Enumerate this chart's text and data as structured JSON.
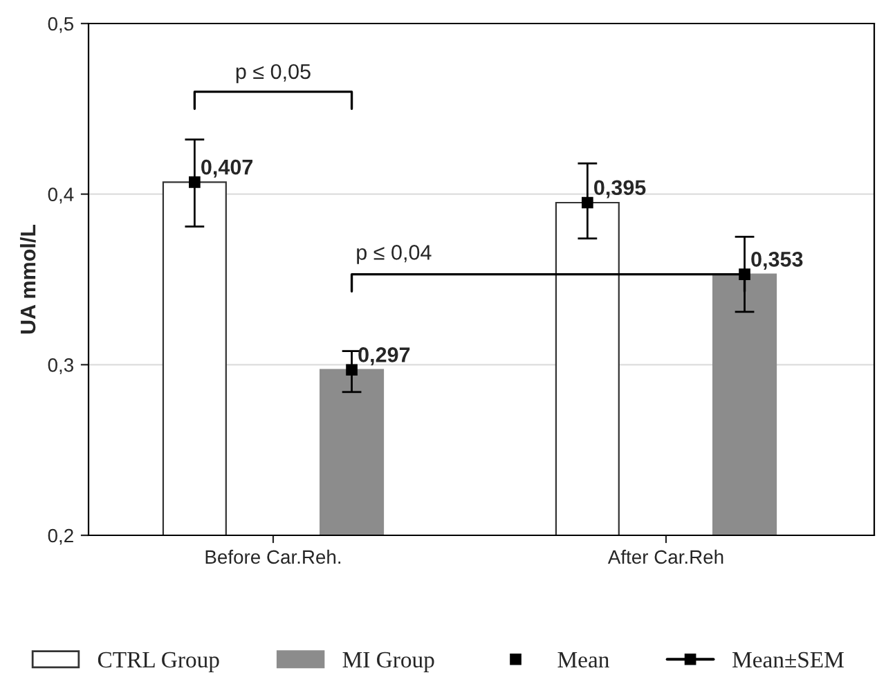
{
  "chart_data": {
    "type": "bar",
    "ylabel": "UA mmol/L",
    "categories": [
      "Before Car.Reh.",
      "After Car.Reh"
    ],
    "series": [
      {
        "name": "CTRL Group",
        "color": "#ffffff",
        "values": [
          0.407,
          0.395
        ],
        "errors": [
          [
            0.381,
            0.432
          ],
          [
            0.374,
            0.418
          ]
        ],
        "value_labels": [
          "0,407",
          "0,395"
        ]
      },
      {
        "name": "MI Group",
        "color": "#8c8c8c",
        "values": [
          0.297,
          0.353
        ],
        "errors": [
          [
            0.284,
            0.308
          ],
          [
            0.331,
            0.375
          ]
        ],
        "value_labels": [
          "0,297",
          "0,353"
        ]
      }
    ],
    "ylim": [
      0.2,
      0.5
    ],
    "yticks": [
      {
        "value": 0.2,
        "label": "0,2"
      },
      {
        "value": 0.3,
        "label": "0,3"
      },
      {
        "value": 0.4,
        "label": "0,4"
      },
      {
        "value": 0.5,
        "label": "0,5"
      }
    ],
    "grid": "y",
    "legend": "bottom",
    "marker": "square",
    "annotations": [
      "p ≤ 0,05",
      "p ≤ 0,04",
      "Mean",
      "Mean±SEM"
    ]
  }
}
